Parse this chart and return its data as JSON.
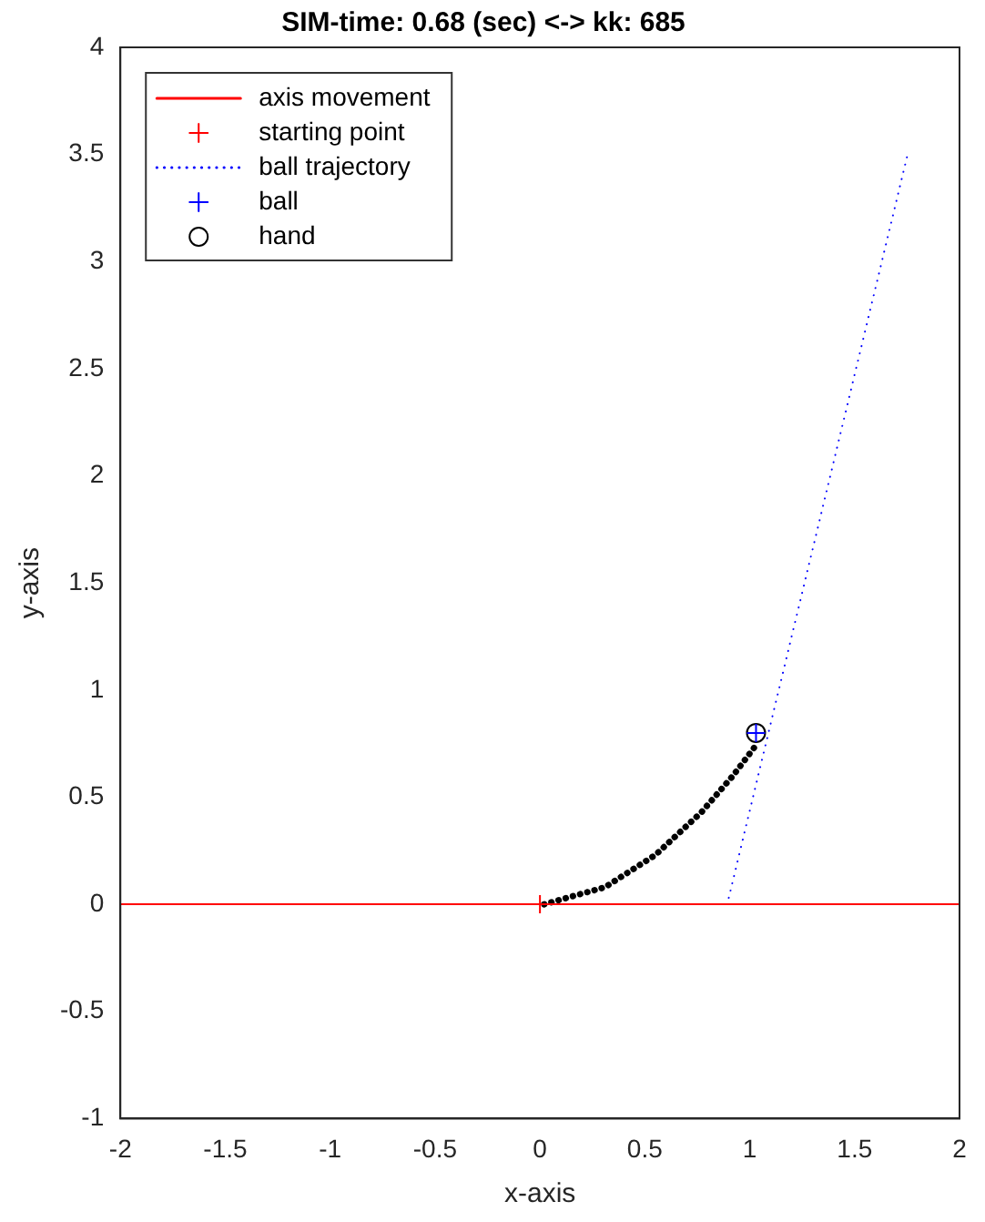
{
  "chart_data": {
    "type": "line",
    "title": "SIM-time: 0.68 (sec) <-> kk: 685",
    "xlabel": "x-axis",
    "ylabel": "y-axis",
    "xlim": [
      -2,
      2
    ],
    "xticks": [
      -2,
      -1.5,
      -1,
      -0.5,
      0,
      0.5,
      1,
      1.5,
      2
    ],
    "ylim": [
      -1,
      4
    ],
    "yticks": [
      -1,
      -0.5,
      0,
      0.5,
      1,
      1.5,
      2,
      2.5,
      3,
      3.5,
      4
    ],
    "grid": false,
    "legend": "top left",
    "series": [
      {
        "name": "axis movement",
        "type": "line",
        "color": "#ff0000",
        "line_style": "solid",
        "marker": "none",
        "x": [
          -2,
          2
        ],
        "values": [
          0,
          0
        ]
      },
      {
        "name": "starting point",
        "type": "scatter",
        "color": "#ff0000",
        "marker": "cross",
        "x": [
          0
        ],
        "values": [
          0
        ]
      },
      {
        "name": "ball trajectory",
        "type": "line",
        "color": "#0000ff",
        "line_style": "dotted",
        "marker": "none",
        "x": [
          0.9,
          1.75
        ],
        "values": [
          0.03,
          3.49
        ]
      },
      {
        "name": "ball",
        "type": "scatter",
        "color": "#0000ff",
        "marker": "cross",
        "x": [
          1.03
        ],
        "values": [
          0.8
        ]
      },
      {
        "name": "hand",
        "type": "scatter",
        "color": "#000000",
        "marker": "circle",
        "x": [
          1.03
        ],
        "values": [
          0.8
        ]
      },
      {
        "type": "line",
        "color": "#000000",
        "line_style": "dotted",
        "marker": "none",
        "x": [
          0.02,
          0.31,
          0.55,
          0.77,
          0.92,
          1.02
        ],
        "values": [
          0,
          0.08,
          0.23,
          0.43,
          0.6,
          0.73
        ]
      }
    ]
  }
}
